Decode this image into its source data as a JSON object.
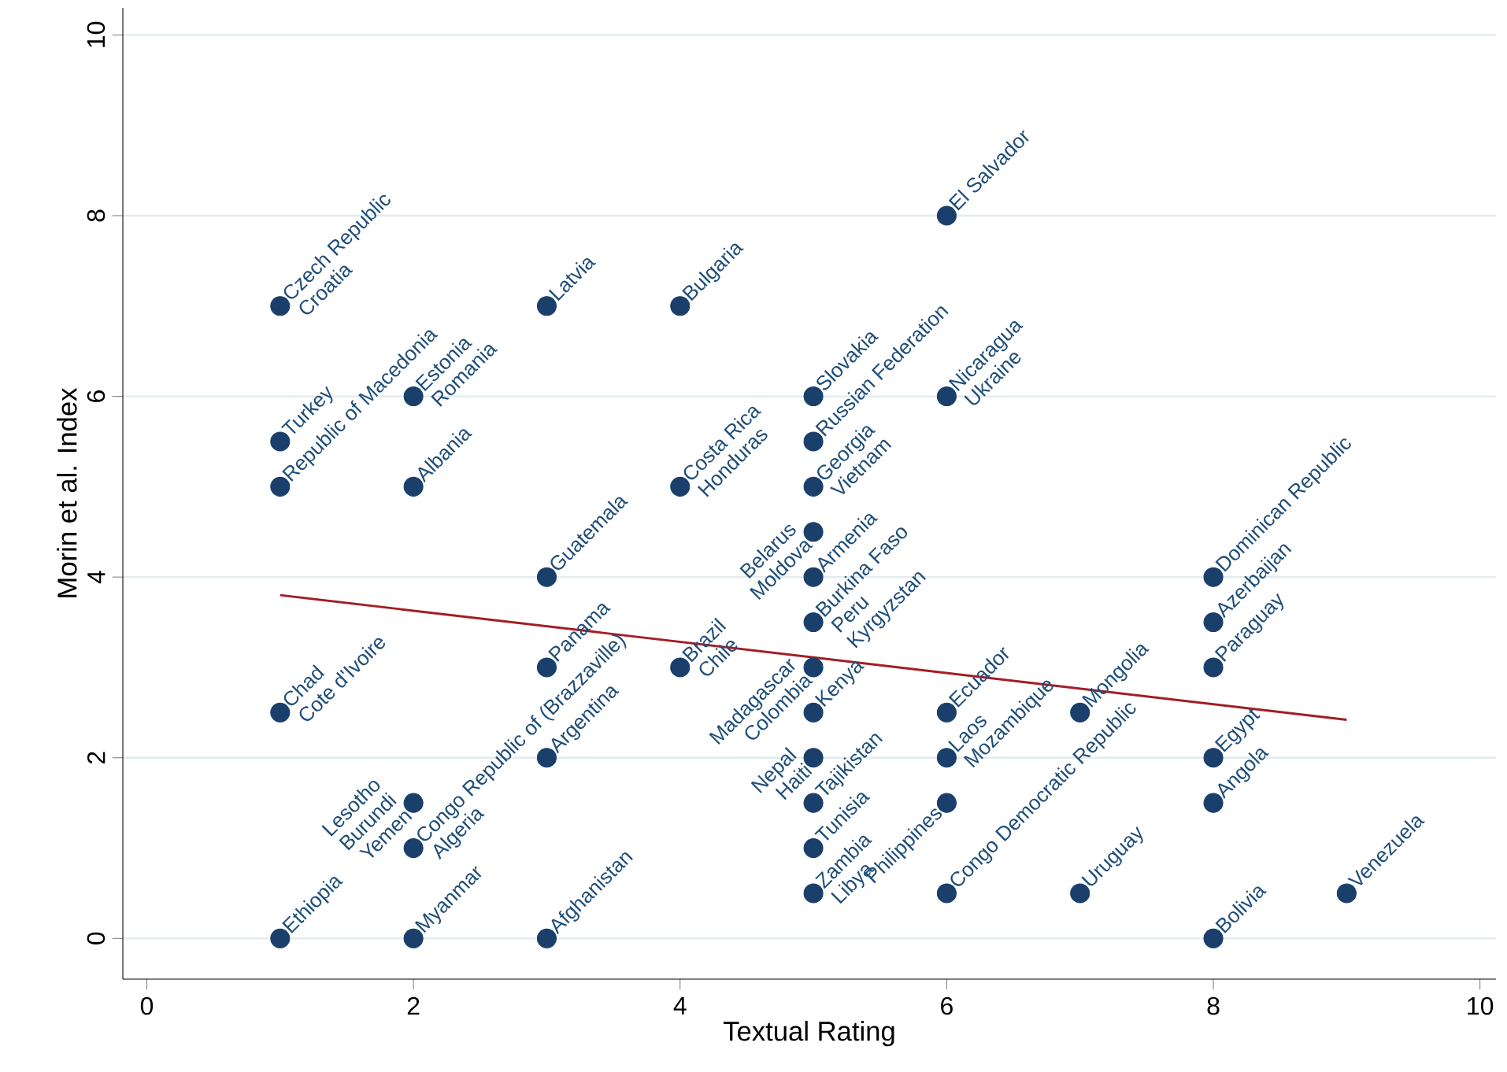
{
  "chart_data": {
    "type": "scatter",
    "xlabel": "Textual Rating",
    "ylabel": "Morin et al. Index",
    "xlim": [
      -0.18,
      10.12
    ],
    "ylim": [
      -0.45,
      10.3
    ],
    "xticks": [
      0,
      2,
      4,
      6,
      8,
      10
    ],
    "yticks": [
      0,
      2,
      4,
      6,
      8,
      10
    ],
    "grid": "y",
    "marker": "circle",
    "series": [
      {
        "color": "#1a3f6b",
        "x": [
          1,
          1,
          1,
          1,
          1,
          2,
          2,
          2,
          2,
          2,
          3,
          3,
          3,
          3,
          3,
          4,
          4,
          4,
          5,
          5,
          5,
          5,
          5,
          5,
          5,
          5,
          5,
          5,
          5,
          5,
          6,
          6,
          6,
          6,
          6,
          6,
          7,
          7,
          8,
          8,
          8,
          8,
          8,
          8,
          9
        ],
        "values": [
          7,
          5.5,
          5,
          2.5,
          0,
          6,
          5,
          1.5,
          1,
          0,
          7,
          4,
          3,
          2,
          0,
          7,
          5,
          3,
          6,
          5.5,
          5,
          4.5,
          4,
          3.5,
          3,
          2.5,
          2,
          1.5,
          1,
          0.5,
          8,
          6,
          2.5,
          2,
          1.5,
          0.5,
          2.5,
          0.5,
          4,
          3.5,
          3,
          2,
          1.5,
          0,
          0.5
        ]
      },
      {
        "type": "line",
        "color": "#a31d24",
        "line_style": "solid",
        "marker": "none",
        "x": [
          1,
          9
        ],
        "values": [
          3.8,
          2.42
        ]
      }
    ],
    "annotations": [
      {
        "text": "Czech Republic",
        "x": 1,
        "y": 7
      },
      {
        "text": "Croatia",
        "x": 1,
        "y": 7
      },
      {
        "text": "Turkey",
        "x": 1,
        "y": 5.5
      },
      {
        "text": "Republic of Macedonia",
        "x": 1,
        "y": 5
      },
      {
        "text": "Chad",
        "x": 1,
        "y": 2.5
      },
      {
        "text": "Cote d'Ivoire",
        "x": 1,
        "y": 2.5
      },
      {
        "text": "Ethiopia",
        "x": 1,
        "y": 0
      },
      {
        "text": "Estonia",
        "x": 2,
        "y": 6
      },
      {
        "text": "Romania",
        "x": 2,
        "y": 6
      },
      {
        "text": "Albania",
        "x": 2,
        "y": 5
      },
      {
        "text": "Lesotho",
        "x": 2,
        "y": 1.5
      },
      {
        "text": "Burundi",
        "x": 2,
        "y": 1.5
      },
      {
        "text": "Yemen",
        "x": 2,
        "y": 1.5
      },
      {
        "text": "Congo Republic of (Brazzaville)",
        "x": 2,
        "y": 1
      },
      {
        "text": "Algeria",
        "x": 2,
        "y": 1
      },
      {
        "text": "Myanmar",
        "x": 2,
        "y": 0
      },
      {
        "text": "Latvia",
        "x": 3,
        "y": 7
      },
      {
        "text": "Guatemala",
        "x": 3,
        "y": 4
      },
      {
        "text": "Panama",
        "x": 3,
        "y": 3
      },
      {
        "text": "Argentina",
        "x": 3,
        "y": 2
      },
      {
        "text": "Afghanistan",
        "x": 3,
        "y": 0
      },
      {
        "text": "Bulgaria",
        "x": 4,
        "y": 7
      },
      {
        "text": "Costa Rica",
        "x": 4,
        "y": 5
      },
      {
        "text": "Honduras",
        "x": 4,
        "y": 5
      },
      {
        "text": "Brazil",
        "x": 4,
        "y": 3
      },
      {
        "text": "Chile",
        "x": 4,
        "y": 3
      },
      {
        "text": "Slovakia",
        "x": 5,
        "y": 6
      },
      {
        "text": "Russian Federation",
        "x": 5,
        "y": 5.5
      },
      {
        "text": "Georgia",
        "x": 5,
        "y": 5
      },
      {
        "text": "Vietnam",
        "x": 5,
        "y": 5
      },
      {
        "text": "Belarus",
        "x": 5,
        "y": 4.5
      },
      {
        "text": "Moldova",
        "x": 5,
        "y": 4.5
      },
      {
        "text": "Armenia",
        "x": 5,
        "y": 4
      },
      {
        "text": "Burkina Faso",
        "x": 5,
        "y": 3.5
      },
      {
        "text": "Peru",
        "x": 5,
        "y": 3.5
      },
      {
        "text": "Kyrgyzstan",
        "x": 5,
        "y": 3.5
      },
      {
        "text": "Madagascar",
        "x": 5,
        "y": 3
      },
      {
        "text": "Colombia",
        "x": 5,
        "y": 3
      },
      {
        "text": "Kenya",
        "x": 5,
        "y": 2.5
      },
      {
        "text": "Nepal",
        "x": 5,
        "y": 2
      },
      {
        "text": "Haiti",
        "x": 5,
        "y": 2
      },
      {
        "text": "Tajikistan",
        "x": 5,
        "y": 1.5
      },
      {
        "text": "Tunisia",
        "x": 5,
        "y": 1
      },
      {
        "text": "Zambia",
        "x": 5,
        "y": 0.5
      },
      {
        "text": "Libya",
        "x": 5,
        "y": 0.5
      },
      {
        "text": "El Salvador",
        "x": 6,
        "y": 8
      },
      {
        "text": "Nicaragua",
        "x": 6,
        "y": 6
      },
      {
        "text": "Ukraine",
        "x": 6,
        "y": 6
      },
      {
        "text": "Ecuador",
        "x": 6,
        "y": 2.5
      },
      {
        "text": "Laos",
        "x": 6,
        "y": 2
      },
      {
        "text": "Mozambique",
        "x": 6,
        "y": 2
      },
      {
        "text": "Philippines",
        "x": 6,
        "y": 1.5
      },
      {
        "text": "Congo Democratic Republic",
        "x": 6,
        "y": 0.5
      },
      {
        "text": "Mongolia",
        "x": 7,
        "y": 2.5
      },
      {
        "text": "Uruguay",
        "x": 7,
        "y": 0.5
      },
      {
        "text": "Dominican Republic",
        "x": 8,
        "y": 4
      },
      {
        "text": "Azerbaijan",
        "x": 8,
        "y": 3.5
      },
      {
        "text": "Paraguay",
        "x": 8,
        "y": 3
      },
      {
        "text": "Egypt",
        "x": 8,
        "y": 2
      },
      {
        "text": "Angola",
        "x": 8,
        "y": 1.5
      },
      {
        "text": "Bolivia",
        "x": 8,
        "y": 0
      },
      {
        "text": "Venezuela",
        "x": 9,
        "y": 0.5
      }
    ]
  }
}
